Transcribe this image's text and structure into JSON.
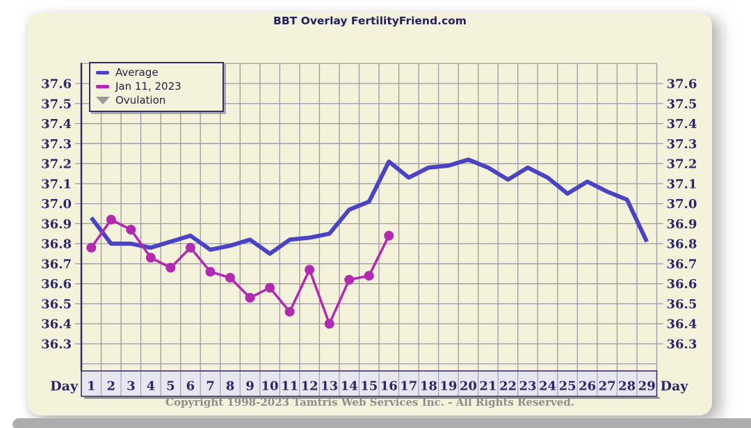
{
  "title": "BBT Overlay FertilityFriend.com",
  "copyright": "Copyright 1998-2023 Tamtris Web Services Inc. - All Rights Reserved.",
  "legend": {
    "items": [
      {
        "label": "Average",
        "color": "#4a44c4",
        "shape": "line"
      },
      {
        "label": "Jan 11, 2023",
        "color": "#b32ab2",
        "shape": "line"
      },
      {
        "label": "Ovulation",
        "color": "#9a9a9a",
        "shape": "triangle-down"
      }
    ]
  },
  "colors": {
    "panel_background": "#f5f2dc",
    "grid": "#9b99a1",
    "axis_text": "#2b2668",
    "average_line": "#4a44c4",
    "cycle_line": "#b32ab2",
    "day_cell_background": "#e8e6ef",
    "copyright_text": "#8d8d8d"
  },
  "chart_data": {
    "type": "line",
    "title": "BBT Overlay FertilityFriend.com",
    "x_label": "Day",
    "x": [
      1,
      2,
      3,
      4,
      5,
      6,
      7,
      8,
      9,
      10,
      11,
      12,
      13,
      14,
      15,
      16,
      17,
      18,
      19,
      20,
      21,
      22,
      23,
      24,
      25,
      26,
      27,
      28,
      29
    ],
    "y_ticks": [
      37.6,
      37.5,
      37.4,
      37.3,
      37.2,
      37.1,
      37.0,
      36.9,
      36.8,
      36.7,
      36.6,
      36.5,
      36.4,
      36.3
    ],
    "ylim": [
      36.2,
      37.7
    ],
    "grid": true,
    "legend_position": "top-left",
    "series": [
      {
        "name": "Average",
        "color": "#4a44c4",
        "style": "thick-line",
        "values": [
          36.93,
          36.8,
          36.8,
          36.78,
          36.81,
          36.84,
          36.77,
          36.79,
          36.82,
          36.75,
          36.82,
          36.83,
          36.85,
          36.97,
          37.01,
          37.21,
          37.13,
          37.18,
          37.19,
          37.22,
          37.18,
          37.12,
          37.18,
          37.13,
          37.05,
          37.11,
          37.06,
          37.02,
          36.81
        ]
      },
      {
        "name": "Jan 11, 2023",
        "color": "#b32ab2",
        "style": "line-with-dots",
        "values": [
          36.78,
          36.92,
          36.87,
          36.73,
          36.68,
          36.78,
          36.66,
          36.63,
          36.53,
          36.58,
          36.46,
          36.67,
          36.4,
          36.62,
          36.64,
          36.84
        ]
      }
    ],
    "legend": [
      "Average",
      "Jan 11, 2023",
      "Ovulation"
    ]
  }
}
